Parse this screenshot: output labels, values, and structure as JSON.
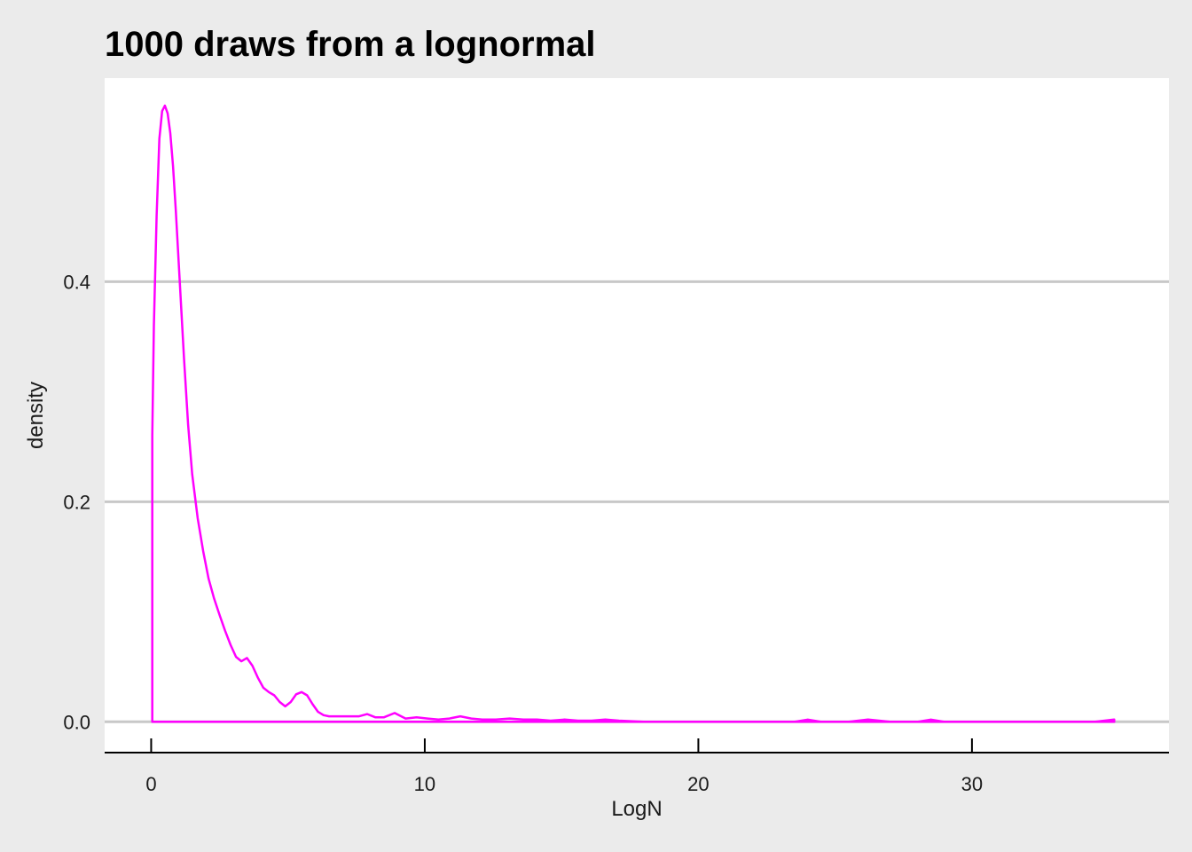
{
  "chart_data": {
    "type": "area",
    "title": "1000 draws from a lognormal",
    "xlabel": "LogN",
    "ylabel": "density",
    "xlim": [
      -1.7,
      37.2
    ],
    "ylim": [
      -0.028,
      0.585
    ],
    "x_ticks": [
      0,
      10,
      20,
      30
    ],
    "y_ticks": [
      0.0,
      0.2,
      0.4
    ],
    "x_tick_labels": [
      "0",
      "10",
      "20",
      "30"
    ],
    "y_tick_labels": [
      "0.0",
      "0.2",
      "0.4"
    ],
    "grid": "horizontal major",
    "legend": "none",
    "series": [
      {
        "x": [
          0.04,
          0.1,
          0.2,
          0.3,
          0.4,
          0.5,
          0.6,
          0.7,
          0.8,
          0.9,
          1.0,
          1.1,
          1.2,
          1.35,
          1.5,
          1.7,
          1.9,
          2.1,
          2.3,
          2.5,
          2.7,
          2.9,
          3.1,
          3.3,
          3.5,
          3.7,
          3.9,
          4.1,
          4.3,
          4.5,
          4.7,
          4.9,
          5.1,
          5.3,
          5.5,
          5.7,
          5.9,
          6.1,
          6.3,
          6.5,
          6.7,
          7.0,
          7.3,
          7.6,
          7.9,
          8.2,
          8.5,
          8.9,
          9.3,
          9.7,
          10.1,
          10.5,
          10.9,
          11.3,
          11.7,
          12.1,
          12.6,
          13.1,
          13.6,
          14.1,
          14.6,
          15.1,
          15.6,
          16.1,
          16.6,
          17.1,
          18.0,
          20.0,
          22.0,
          23.5,
          24.0,
          24.5,
          25.5,
          26.2,
          27.0,
          28.0,
          28.5,
          29.0,
          31.0,
          33.0,
          34.5,
          35.2
        ],
        "values": [
          0.26,
          0.36,
          0.46,
          0.53,
          0.555,
          0.56,
          0.553,
          0.535,
          0.505,
          0.465,
          0.42,
          0.375,
          0.33,
          0.27,
          0.225,
          0.185,
          0.155,
          0.13,
          0.112,
          0.097,
          0.083,
          0.07,
          0.059,
          0.055,
          0.058,
          0.051,
          0.04,
          0.031,
          0.027,
          0.024,
          0.018,
          0.014,
          0.018,
          0.025,
          0.027,
          0.024,
          0.016,
          0.009,
          0.006,
          0.005,
          0.005,
          0.005,
          0.005,
          0.005,
          0.007,
          0.004,
          0.004,
          0.008,
          0.003,
          0.004,
          0.003,
          0.002,
          0.003,
          0.005,
          0.003,
          0.002,
          0.002,
          0.003,
          0.002,
          0.002,
          0.001,
          0.002,
          0.001,
          0.001,
          0.002,
          0.001,
          0.0,
          0.0,
          0.0,
          0.0,
          0.002,
          0.0,
          0.0,
          0.002,
          0.0,
          0.0,
          0.002,
          0.0,
          0.0,
          0.0,
          0.0,
          0.002
        ]
      }
    ],
    "colors": {
      "line": "#ff00ff",
      "panel": "#ffffff",
      "background": "#ebebeb",
      "grid": "#c8c8c8",
      "axis": "#000000"
    }
  }
}
